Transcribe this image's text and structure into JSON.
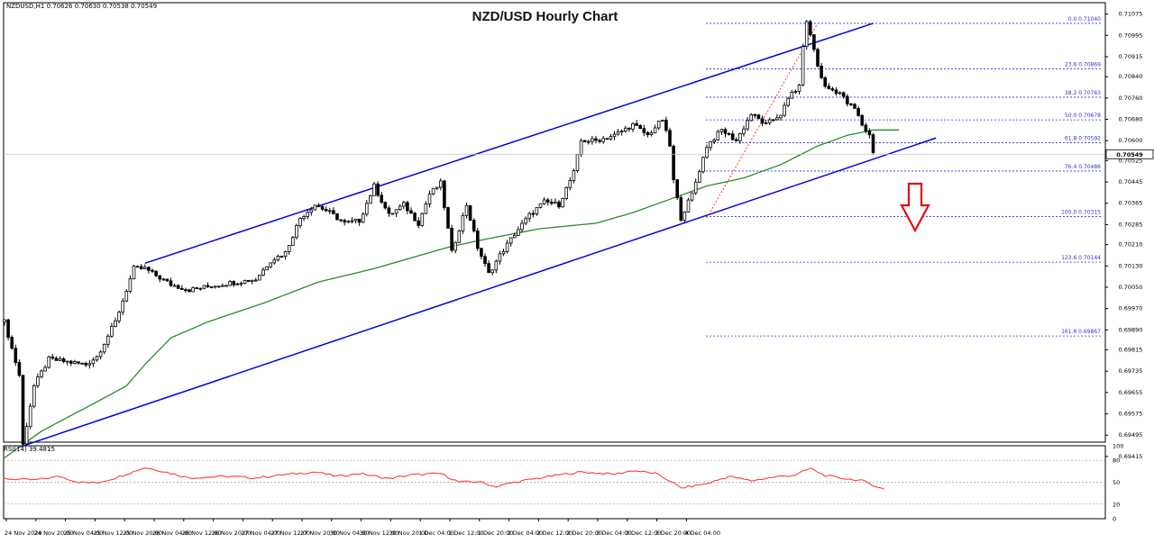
{
  "header": {
    "symbol": "NZDUSD,H1",
    "ohlc": "0.70626 0.70630 0.70538 0.70549",
    "title": "NZD/USD Hourly Chart",
    "current_price": "0.70549"
  },
  "colors": {
    "channel": "#0000dd",
    "ma": "#2a8a2a",
    "fib": "#3333cc",
    "rsi": "#ff2a2a",
    "arrow": "#dd1111",
    "candle": "#000000",
    "retrace_line": "#ff3333"
  },
  "chart_data": [
    {
      "type": "candlestick",
      "title": "NZD/USD Hourly Chart",
      "grid": false,
      "y_axis": {
        "ylim": [
          0.69405,
          0.7111
        ],
        "tick_labels": [
          "0.71075",
          "0.70995",
          "0.70915",
          "0.70840",
          "0.70760",
          "0.70680",
          "0.70600",
          "0.70525",
          "0.70445",
          "0.70365",
          "0.70285",
          "0.70210",
          "0.70130",
          "0.70050",
          "0.69970",
          "0.69890",
          "0.69815",
          "0.69735",
          "0.69655",
          "0.69575",
          "0.69495",
          "0.69415"
        ]
      },
      "x_axis": {
        "tick_labels": [
          "24 Nov 2020",
          "24 Nov 20:00",
          "25 Nov 04:00",
          "25 Nov 12:00",
          "25 Nov 20:00",
          "26 Nov 04:00",
          "26 Nov 12:00",
          "26 Nov 20:00",
          "27 Nov 04:00",
          "27 Nov 12:00",
          "27 Nov 20:00",
          "30 Nov 04:00",
          "30 Nov 12:00",
          "30 Nov 20:00",
          "1 Dec 04:00",
          "1 Dec 12:00",
          "1 Dec 20:00",
          "2 Dec 04:00",
          "2 Dec 12:00",
          "2 Dec 20:00",
          "3 Dec 04:00",
          "3 Dec 12:00",
          "3 Dec 20:00",
          "4 Dec 04:00"
        ]
      },
      "anchors": [
        [
          0,
          0.6992
        ],
        [
          4,
          0.6972
        ],
        [
          5,
          0.6946
        ],
        [
          8,
          0.6968
        ],
        [
          12,
          0.6978
        ],
        [
          22,
          0.6976
        ],
        [
          25,
          0.6979
        ],
        [
          30,
          0.6992
        ],
        [
          35,
          0.7012
        ],
        [
          38,
          0.7012
        ],
        [
          45,
          0.7006
        ],
        [
          50,
          0.7004
        ],
        [
          58,
          0.7006
        ],
        [
          68,
          0.7008
        ],
        [
          72,
          0.7015
        ],
        [
          76,
          0.7018
        ],
        [
          80,
          0.7031
        ],
        [
          84,
          0.7036
        ],
        [
          88,
          0.7033
        ],
        [
          92,
          0.7029
        ],
        [
          96,
          0.703
        ],
        [
          100,
          0.7043
        ],
        [
          104,
          0.7032
        ],
        [
          108,
          0.7036
        ],
        [
          112,
          0.7029
        ],
        [
          115,
          0.704
        ],
        [
          118,
          0.7044
        ],
        [
          121,
          0.7018
        ],
        [
          125,
          0.7036
        ],
        [
          128,
          0.702
        ],
        [
          131,
          0.701
        ],
        [
          134,
          0.7017
        ],
        [
          138,
          0.7025
        ],
        [
          142,
          0.7032
        ],
        [
          146,
          0.7037
        ],
        [
          150,
          0.7036
        ],
        [
          154,
          0.7048
        ],
        [
          156,
          0.706
        ],
        [
          160,
          0.706
        ],
        [
          165,
          0.7062
        ],
        [
          170,
          0.7066
        ],
        [
          174,
          0.7062
        ],
        [
          178,
          0.7068
        ],
        [
          180,
          0.7058
        ],
        [
          181,
          0.7045
        ],
        [
          183,
          0.7031
        ],
        [
          186,
          0.704
        ],
        [
          190,
          0.7058
        ],
        [
          194,
          0.7064
        ],
        [
          198,
          0.706
        ],
        [
          202,
          0.707
        ],
        [
          206,
          0.7066
        ],
        [
          210,
          0.707
        ],
        [
          213,
          0.7078
        ],
        [
          215,
          0.708
        ],
        [
          216,
          0.7096
        ],
        [
          217,
          0.7104
        ],
        [
          218,
          0.71
        ],
        [
          220,
          0.7088
        ],
        [
          222,
          0.708
        ],
        [
          226,
          0.7078
        ],
        [
          228,
          0.7074
        ],
        [
          230,
          0.7072
        ],
        [
          232,
          0.7066
        ],
        [
          234,
          0.7062
        ],
        [
          235,
          0.7056
        ]
      ],
      "moving_average_anchors": [
        [
          0,
          0.6941
        ],
        [
          10,
          0.6951
        ],
        [
          25,
          0.6962
        ],
        [
          33,
          0.6968
        ],
        [
          38,
          0.6976
        ],
        [
          45,
          0.6986
        ],
        [
          55,
          0.6992
        ],
        [
          70,
          0.6999
        ],
        [
          85,
          0.7007
        ],
        [
          100,
          0.7012
        ],
        [
          110,
          0.7016
        ],
        [
          120,
          0.702
        ],
        [
          130,
          0.7023
        ],
        [
          145,
          0.7027
        ],
        [
          160,
          0.7029
        ],
        [
          170,
          0.7033
        ],
        [
          180,
          0.7038
        ],
        [
          190,
          0.7043
        ],
        [
          200,
          0.7046
        ],
        [
          210,
          0.7051
        ],
        [
          220,
          0.7058
        ],
        [
          228,
          0.7062
        ],
        [
          235,
          0.7064
        ],
        [
          242,
          0.7064
        ]
      ],
      "fibonacci": [
        {
          "label": "0.0",
          "price": 0.7104
        },
        {
          "label": "23.6",
          "price": 0.70869
        },
        {
          "label": "38.2",
          "price": 0.70763
        },
        {
          "label": "50.0",
          "price": 0.70678
        },
        {
          "label": "61.8",
          "price": 0.70592
        },
        {
          "label": "76.4",
          "price": 0.70486
        },
        {
          "label": "100.0",
          "price": 0.70315
        },
        {
          "label": "123.6",
          "price": 0.70144
        },
        {
          "label": "161.8",
          "price": 0.69867
        }
      ],
      "channel": {
        "upper": [
          [
            38,
            0.7014
          ],
          [
            235,
            0.7104
          ]
        ],
        "lower": [
          [
            4,
            0.6945
          ],
          [
            252,
            0.7061
          ]
        ]
      },
      "retrace_line": [
        [
          190,
          0.7031
        ],
        [
          220,
          0.7104
        ]
      ]
    },
    {
      "type": "line",
      "title": "RSI(14) 39.4815",
      "series": [
        {
          "name": "RSI(14)"
        }
      ],
      "value": 39.4815,
      "ylim": [
        0,
        100
      ],
      "levels": [
        80,
        50,
        20
      ],
      "y_tick_labels": [
        "100",
        "80",
        "50",
        "20",
        "0"
      ],
      "anchors": [
        [
          0,
          55
        ],
        [
          8,
          53
        ],
        [
          15,
          58
        ],
        [
          20,
          50
        ],
        [
          25,
          49
        ],
        [
          30,
          56
        ],
        [
          38,
          70
        ],
        [
          42,
          66
        ],
        [
          50,
          56
        ],
        [
          60,
          58
        ],
        [
          68,
          56
        ],
        [
          75,
          60
        ],
        [
          84,
          64
        ],
        [
          90,
          58
        ],
        [
          96,
          62
        ],
        [
          104,
          55
        ],
        [
          110,
          60
        ],
        [
          118,
          62
        ],
        [
          123,
          50
        ],
        [
          128,
          51
        ],
        [
          133,
          44
        ],
        [
          138,
          50
        ],
        [
          145,
          56
        ],
        [
          150,
          60
        ],
        [
          156,
          64
        ],
        [
          165,
          61
        ],
        [
          170,
          66
        ],
        [
          176,
          62
        ],
        [
          180,
          52
        ],
        [
          183,
          42
        ],
        [
          190,
          48
        ],
        [
          196,
          58
        ],
        [
          202,
          52
        ],
        [
          208,
          57
        ],
        [
          214,
          60
        ],
        [
          218,
          69
        ],
        [
          222,
          59
        ],
        [
          226,
          56
        ],
        [
          232,
          52
        ],
        [
          235,
          46
        ],
        [
          238,
          40
        ]
      ]
    }
  ]
}
